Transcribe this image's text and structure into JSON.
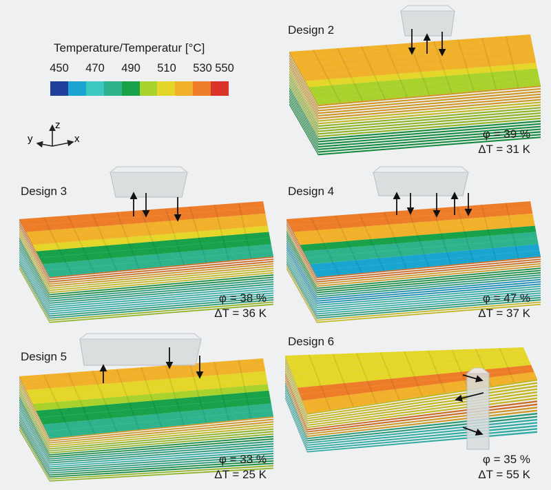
{
  "legend": {
    "title": "Temperature/Temperatur [°C]",
    "ticks": [
      "450",
      "470",
      "490",
      "510",
      "530",
      "550"
    ],
    "colors": [
      "#1f3f9a",
      "#1aa4d0",
      "#3cc8c0",
      "#2eb38c",
      "#1aa24a",
      "#a9d32c",
      "#e5d62a",
      "#f2b12b",
      "#ee7d2a",
      "#d9332a"
    ]
  },
  "axes": {
    "x": "x",
    "y": "y",
    "z": "z"
  },
  "designs": [
    {
      "label": "Design 2",
      "phi": "φ = 39 %",
      "dt": "ΔT = 31 K"
    },
    {
      "label": "Design 3",
      "phi": "φ = 38 %",
      "dt": "ΔT = 36 K"
    },
    {
      "label": "Design 4",
      "phi": "φ = 47 %",
      "dt": "ΔT = 37 K"
    },
    {
      "label": "Design 5",
      "phi": "φ = 33 %",
      "dt": "ΔT = 25 K"
    },
    {
      "label": "Design 6",
      "phi": "φ = 35 %",
      "dt": "ΔT = 55 K"
    }
  ]
}
